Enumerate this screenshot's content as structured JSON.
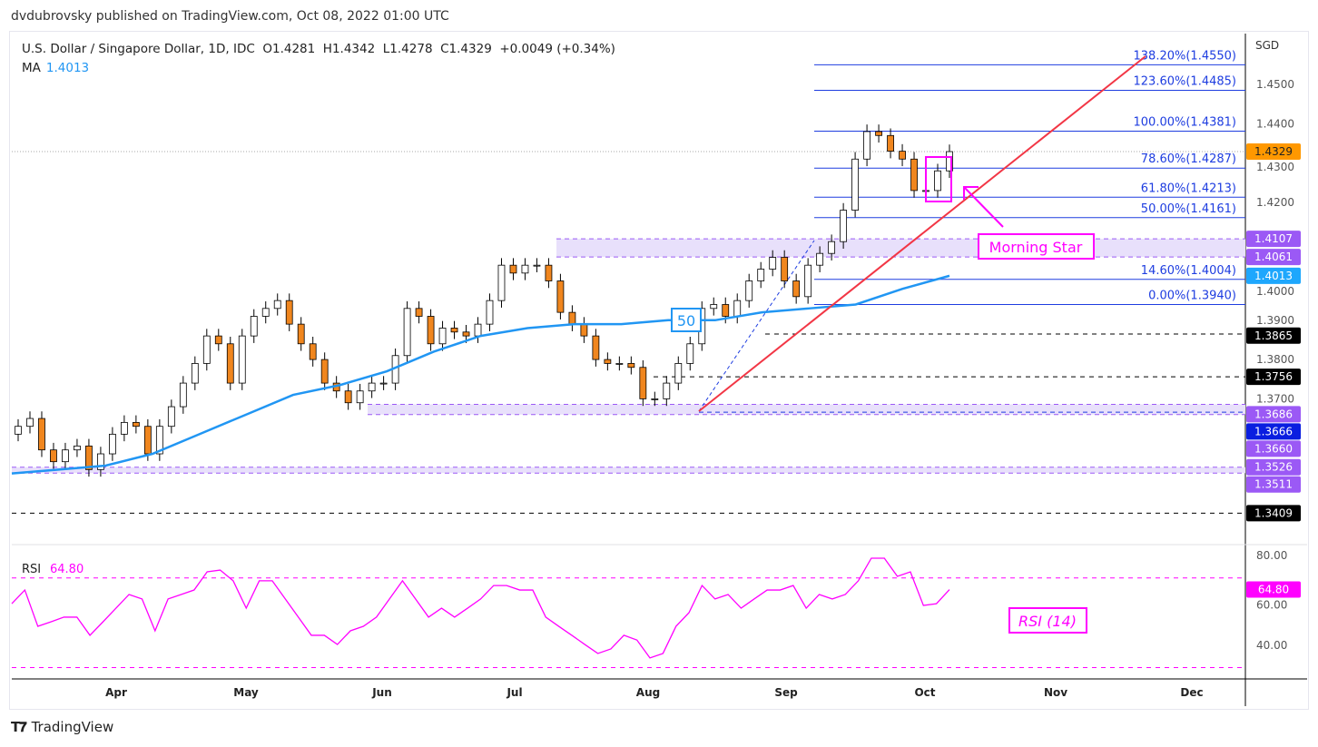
{
  "published": "dvdubrovsky published on TradingView.com, Oct 08, 2022 01:00 UTC",
  "header": {
    "symbol": "U.S. Dollar / Singapore Dollar, 1D, IDC",
    "ohlc": "O1.4281  H1.4342  L1.4278  C1.4329  +0.0049 (+0.34%)",
    "ma_label": "MA",
    "ma_value": "1.4013"
  },
  "footer": {
    "brand": "TradingView"
  },
  "colors": {
    "up": "#ffffff",
    "down": "#f0861e",
    "ma": "#2196f3",
    "fib": "#1e3de0",
    "trend": "#f23645",
    "annotation": "#ff00ff",
    "zone": "#e8e0fb",
    "price_label": "#ff9800"
  },
  "chart_data": {
    "type": "candlestick",
    "currency": "SGD",
    "x_ticks": [
      "Apr",
      "May",
      "Jun",
      "Jul",
      "Aug",
      "Sep",
      "Oct",
      "Nov",
      "Dec"
    ],
    "y_ticks": [
      "1.4500",
      "1.4400",
      "1.4300",
      "1.4200",
      "1.4000",
      "1.3900",
      "1.3800",
      "1.3700"
    ],
    "closes": [
      1.363,
      1.365,
      1.357,
      1.354,
      1.357,
      1.358,
      1.352,
      1.356,
      1.361,
      1.364,
      1.363,
      1.356,
      1.363,
      1.368,
      1.374,
      1.379,
      1.386,
      1.384,
      1.374,
      1.386,
      1.391,
      1.393,
      1.395,
      1.389,
      1.384,
      1.38,
      1.374,
      1.372,
      1.369,
      1.372,
      1.374,
      1.374,
      1.381,
      1.393,
      1.391,
      1.384,
      1.388,
      1.387,
      1.386,
      1.389,
      1.395,
      1.404,
      1.402,
      1.404,
      1.404,
      1.4,
      1.392,
      1.389,
      1.386,
      1.38,
      1.379,
      1.379,
      1.378,
      1.37,
      1.37,
      1.374,
      1.379,
      1.384,
      1.393,
      1.394,
      1.391,
      1.395,
      1.4,
      1.403,
      1.406,
      1.4,
      1.396,
      1.404,
      1.407,
      1.41,
      1.418,
      1.431,
      1.438,
      1.437,
      1.433,
      1.431,
      1.423,
      1.423,
      1.428,
      1.4329
    ],
    "ma_period": "50",
    "ma": [
      1.351,
      1.352,
      1.353,
      1.356,
      1.361,
      1.366,
      1.371,
      1.3735,
      1.377,
      1.382,
      1.386,
      1.388,
      1.389,
      1.389,
      1.39,
      1.39,
      1.392,
      1.393,
      1.394,
      1.398,
      1.4013
    ],
    "last_price": "1.4329",
    "fib_levels": [
      {
        "label": "138.20%(1.4550)",
        "price": 1.455
      },
      {
        "label": "123.60%(1.4485)",
        "price": 1.4485
      },
      {
        "label": "100.00%(1.4381)",
        "price": 1.4381
      },
      {
        "label": "78.60%(1.4287)",
        "price": 1.4287
      },
      {
        "label": "61.80%(1.4213)",
        "price": 1.4213
      },
      {
        "label": "50.00%(1.4161)",
        "price": 1.4161
      },
      {
        "label": "14.60%(1.4004)",
        "price": 1.4004
      },
      {
        "label": "0.00%(1.3940)",
        "price": 1.394
      }
    ],
    "zones": [
      {
        "top": 1.4107,
        "bottom": 1.4061,
        "top_label": "1.4107",
        "bottom_label": "1.4061"
      },
      {
        "top": 1.3686,
        "bottom": 1.366,
        "top_label": "1.3686",
        "bottom_label": "1.3660"
      },
      {
        "top": 1.3526,
        "bottom": 1.3511,
        "top_label": "1.3526",
        "bottom_label": "1.3511"
      }
    ],
    "levels": [
      {
        "price": 1.3865,
        "label": "1.3865"
      },
      {
        "price": 1.3756,
        "label": "1.3756"
      },
      {
        "price": 1.3409,
        "label": "1.3409"
      }
    ],
    "ma_label": "1.4013",
    "blue_level": {
      "price": 1.3666,
      "label": "1.3666"
    },
    "annotations": {
      "pattern": "Morning Star",
      "ma_tag": "50",
      "rsi_tag": "RSI (14)"
    },
    "rsi": {
      "label": "RSI",
      "value": "64.80",
      "y_ticks": [
        "80.00",
        "60.00",
        "40.00"
      ],
      "bands": [
        70,
        30
      ],
      "values": [
        58.5,
        64.6,
        48.4,
        50.4,
        52.5,
        52.5,
        44.4,
        50.4,
        56.5,
        62.6,
        60.6,
        46.4,
        60.6,
        62.6,
        64.6,
        72.7,
        73.5,
        68.7,
        56.5,
        68.7,
        68.7,
        60.6,
        52.5,
        44.4,
        44.4,
        40.3,
        46.4,
        48.4,
        52.5,
        60.6,
        68.7,
        60.6,
        52.5,
        56.5,
        52.5,
        56.5,
        60.6,
        66.6,
        66.6,
        64.6,
        64.6,
        52.5,
        48.4,
        44.4,
        40.3,
        36.3,
        38.3,
        44.4,
        42.3,
        34.3,
        36.3,
        48.4,
        54.5,
        66.6,
        60.6,
        62.6,
        56.5,
        60.6,
        64.6,
        64.6,
        66.6,
        56.5,
        62.6,
        60.6,
        62.6,
        68.7,
        78.8,
        78.8,
        70.7,
        72.7,
        57.7,
        58.5,
        64.8
      ]
    }
  }
}
